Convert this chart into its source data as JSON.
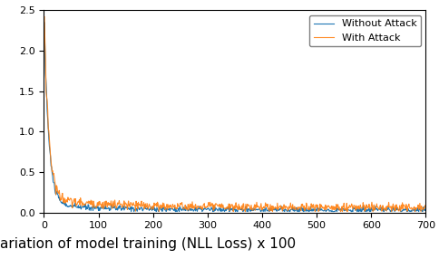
{
  "xlim": [
    0,
    700
  ],
  "ylim": [
    0.0,
    2.5
  ],
  "xticks": [
    0,
    100,
    200,
    300,
    400,
    500,
    600,
    700
  ],
  "yticks": [
    0.0,
    0.5,
    1.0,
    1.5,
    2.0,
    2.5
  ],
  "legend_labels": [
    "Without Attack",
    "With Attack"
  ],
  "line_colors": [
    "#1f77b4",
    "#ff7f0e"
  ],
  "line_width": 0.8,
  "caption": "ariation of model training (NLL Loss) x 100",
  "figsize": [
    4.84,
    2.86
  ],
  "dpi": 100,
  "n_points": 700,
  "peak_no_attack": 2.45,
  "peak_with_attack": 2.45,
  "plateau_no_attack": 0.06,
  "plateau_with_attack": 0.1,
  "decay_fast": 0.12,
  "decay_slow": 0.008
}
